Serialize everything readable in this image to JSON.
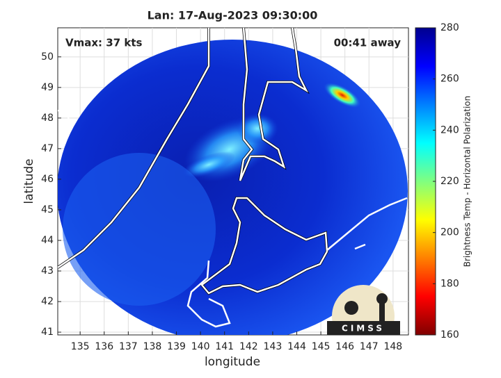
{
  "chart_data": {
    "type": "map",
    "title": "Lan: 17-Aug-2023 09:30:00",
    "annotations": [
      "Vmax: 37 kts",
      "00:41 away"
    ],
    "xlabel": "longitude",
    "ylabel": "latitude",
    "xlim": [
      134.07,
      148.64
    ],
    "ylim": [
      40.91,
      50.95
    ],
    "xticks": [
      135,
      136,
      137,
      138,
      139,
      140,
      141,
      142,
      143,
      144,
      145,
      146,
      147,
      148
    ],
    "yticks": [
      41,
      42,
      43,
      44,
      45,
      46,
      47,
      48,
      49,
      50
    ],
    "grid": true,
    "logo": "CIMSS",
    "colorbar": {
      "label": "Brightness Temp - Horizontal Polarization",
      "lim": [
        160,
        280
      ],
      "ticks": [
        160,
        180,
        200,
        220,
        240,
        260,
        280
      ],
      "colors": [
        "#800000",
        "#ff0000",
        "#ff8000",
        "#ffff00",
        "#80ff80",
        "#00ffff",
        "#0080ff",
        "#0000ff",
        "#00008f"
      ]
    }
  }
}
